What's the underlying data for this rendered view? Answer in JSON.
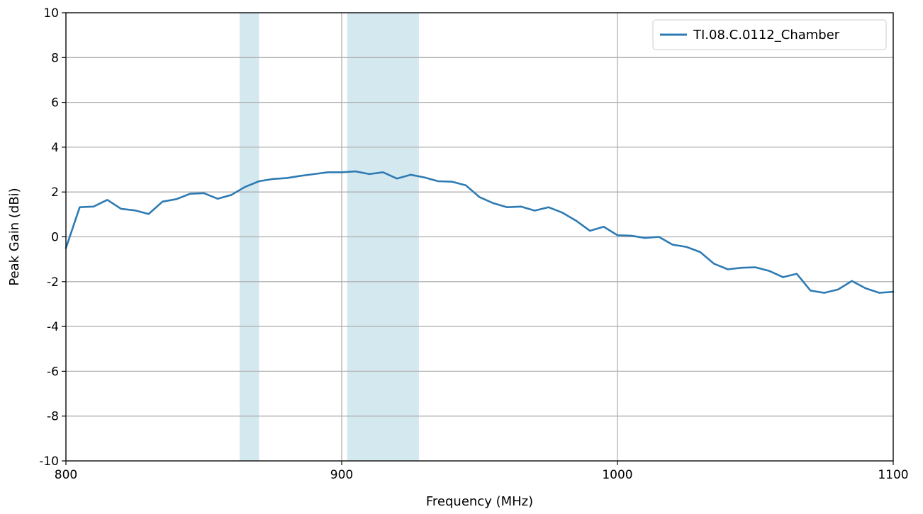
{
  "chart_data": {
    "type": "line",
    "title": "",
    "xlabel": "Frequency (MHz)",
    "ylabel": "Peak Gain (dBi)",
    "xlim": [
      800,
      1100
    ],
    "ylim": [
      -10,
      10
    ],
    "xticks": [
      800,
      900,
      1000,
      1100
    ],
    "yticks": [
      -10,
      -8,
      -6,
      -4,
      -2,
      0,
      2,
      4,
      6,
      8,
      10
    ],
    "grid": true,
    "legend_position": "top-right",
    "shaded_bands": [
      {
        "x0": 863,
        "x1": 870,
        "color": "#d4e8f0"
      },
      {
        "x0": 902,
        "x1": 928,
        "color": "#d4e8f0"
      }
    ],
    "series": [
      {
        "name": "TI.08.C.0112_Chamber",
        "color": "#2e7bb4",
        "x": [
          800,
          805,
          810,
          815,
          820,
          825,
          830,
          835,
          840,
          845,
          850,
          855,
          860,
          865,
          870,
          875,
          880,
          885,
          890,
          895,
          900,
          905,
          910,
          915,
          920,
          925,
          930,
          935,
          940,
          945,
          950,
          955,
          960,
          965,
          970,
          975,
          980,
          985,
          990,
          995,
          1000,
          1005,
          1010,
          1015,
          1020,
          1025,
          1030,
          1035,
          1040,
          1045,
          1050,
          1055,
          1060,
          1065,
          1070,
          1075,
          1080,
          1085,
          1090,
          1095,
          1100
        ],
        "y": [
          -0.5,
          1.32,
          1.35,
          1.65,
          1.25,
          1.18,
          1.02,
          1.57,
          1.68,
          1.92,
          1.95,
          1.7,
          1.87,
          2.23,
          2.48,
          2.58,
          2.62,
          2.72,
          2.8,
          2.88,
          2.88,
          2.92,
          2.8,
          2.88,
          2.6,
          2.77,
          2.65,
          2.48,
          2.46,
          2.3,
          1.77,
          1.5,
          1.32,
          1.35,
          1.17,
          1.32,
          1.08,
          0.72,
          0.27,
          0.45,
          0.07,
          0.05,
          -0.05,
          0.0,
          -0.35,
          -0.45,
          -0.68,
          -1.2,
          -1.45,
          -1.38,
          -1.36,
          -1.52,
          -1.8,
          -1.65,
          -2.4,
          -2.5,
          -2.35,
          -1.97,
          -2.3,
          -2.5,
          -2.45
        ]
      }
    ]
  }
}
